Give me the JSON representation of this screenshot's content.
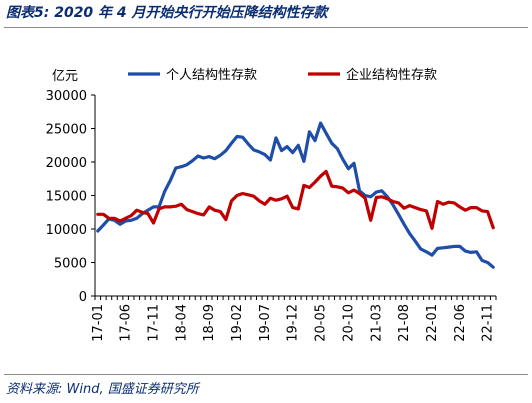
{
  "figure": {
    "title": "图表5:  2020 年 4 月开始央行开始压降结构性存款",
    "source": "资料来源:  Wind,  国盛证券研究所"
  },
  "colors": {
    "series_personal": "#1f4ea8",
    "series_corporate": "#c00000",
    "title_text": "#0b2e73"
  },
  "chart_data": {
    "type": "line",
    "title": "",
    "xlabel": "",
    "ylabel": "亿元",
    "ylim": [
      0,
      30000
    ],
    "yticks": [
      0,
      5000,
      10000,
      15000,
      20000,
      25000,
      30000
    ],
    "ytick_labels": [
      "0",
      "5000",
      "10000",
      "15000",
      "20000",
      "25000",
      "30000"
    ],
    "xtick_labels": [
      "17-01",
      "17-06",
      "17-11",
      "18-04",
      "18-09",
      "19-02",
      "19-07",
      "19-12",
      "20-05",
      "20-10",
      "21-03",
      "21-08",
      "22-01",
      "22-06",
      "22-11"
    ],
    "legend_position": "top",
    "grid": false,
    "x": [
      "17-01",
      "17-02",
      "17-03",
      "17-04",
      "17-05",
      "17-06",
      "17-07",
      "17-08",
      "17-09",
      "17-10",
      "17-11",
      "17-12",
      "18-01",
      "18-02",
      "18-03",
      "18-04",
      "18-05",
      "18-06",
      "18-07",
      "18-08",
      "18-09",
      "18-10",
      "18-11",
      "18-12",
      "19-01",
      "19-02",
      "19-03",
      "19-04",
      "19-05",
      "19-06",
      "19-07",
      "19-08",
      "19-09",
      "19-10",
      "19-11",
      "19-12",
      "20-01",
      "20-02",
      "20-03",
      "20-04",
      "20-05",
      "20-06",
      "20-07",
      "20-08",
      "20-09",
      "20-10",
      "20-11",
      "20-12",
      "21-01",
      "21-02",
      "21-03",
      "21-04",
      "21-05",
      "21-06",
      "21-07",
      "21-08",
      "21-09",
      "21-10",
      "21-11",
      "21-12",
      "22-01",
      "22-02",
      "22-03",
      "22-04",
      "22-05",
      "22-06",
      "22-07",
      "22-08",
      "22-09",
      "22-10",
      "22-11",
      "22-12"
    ],
    "series": [
      {
        "name": "个人结构性存款",
        "color": "#1f4ea8",
        "values": [
          9700,
          10600,
          11500,
          11300,
          10700,
          11200,
          11300,
          11600,
          12300,
          12800,
          13300,
          13300,
          15600,
          17200,
          19100,
          19300,
          19600,
          20200,
          20900,
          20600,
          20800,
          20500,
          21000,
          21700,
          22800,
          23800,
          23700,
          22700,
          21800,
          21500,
          21100,
          20300,
          23600,
          21700,
          22300,
          21400,
          22500,
          20100,
          24500,
          23200,
          25800,
          24300,
          22800,
          22000,
          20400,
          19000,
          19800,
          15700,
          15000,
          14800,
          15500,
          15700,
          14800,
          13600,
          12200,
          10700,
          9300,
          8200,
          7000,
          6600,
          6100,
          7100,
          7200,
          7300,
          7400,
          7400,
          6700,
          6500,
          6600,
          5300,
          5000,
          4300
        ]
      },
      {
        "name": "企业结构性存款",
        "color": "#c00000",
        "values": [
          12200,
          12200,
          11600,
          11600,
          11200,
          11600,
          12000,
          12800,
          12500,
          12300,
          10900,
          13000,
          13300,
          13300,
          13400,
          13700,
          12900,
          12600,
          12300,
          12100,
          13300,
          12800,
          12600,
          11400,
          14200,
          15000,
          15300,
          15100,
          14900,
          14200,
          13700,
          14600,
          14300,
          14500,
          14900,
          13200,
          13000,
          16500,
          16200,
          17000,
          17900,
          18600,
          16400,
          16300,
          16100,
          15400,
          15800,
          15300,
          14600,
          11300,
          14700,
          14800,
          14500,
          14100,
          13900,
          13100,
          13500,
          13200,
          12900,
          12700,
          10100,
          14100,
          13700,
          14000,
          13900,
          13300,
          12800,
          13200,
          13200,
          12700,
          12600,
          10200
        ]
      }
    ]
  }
}
